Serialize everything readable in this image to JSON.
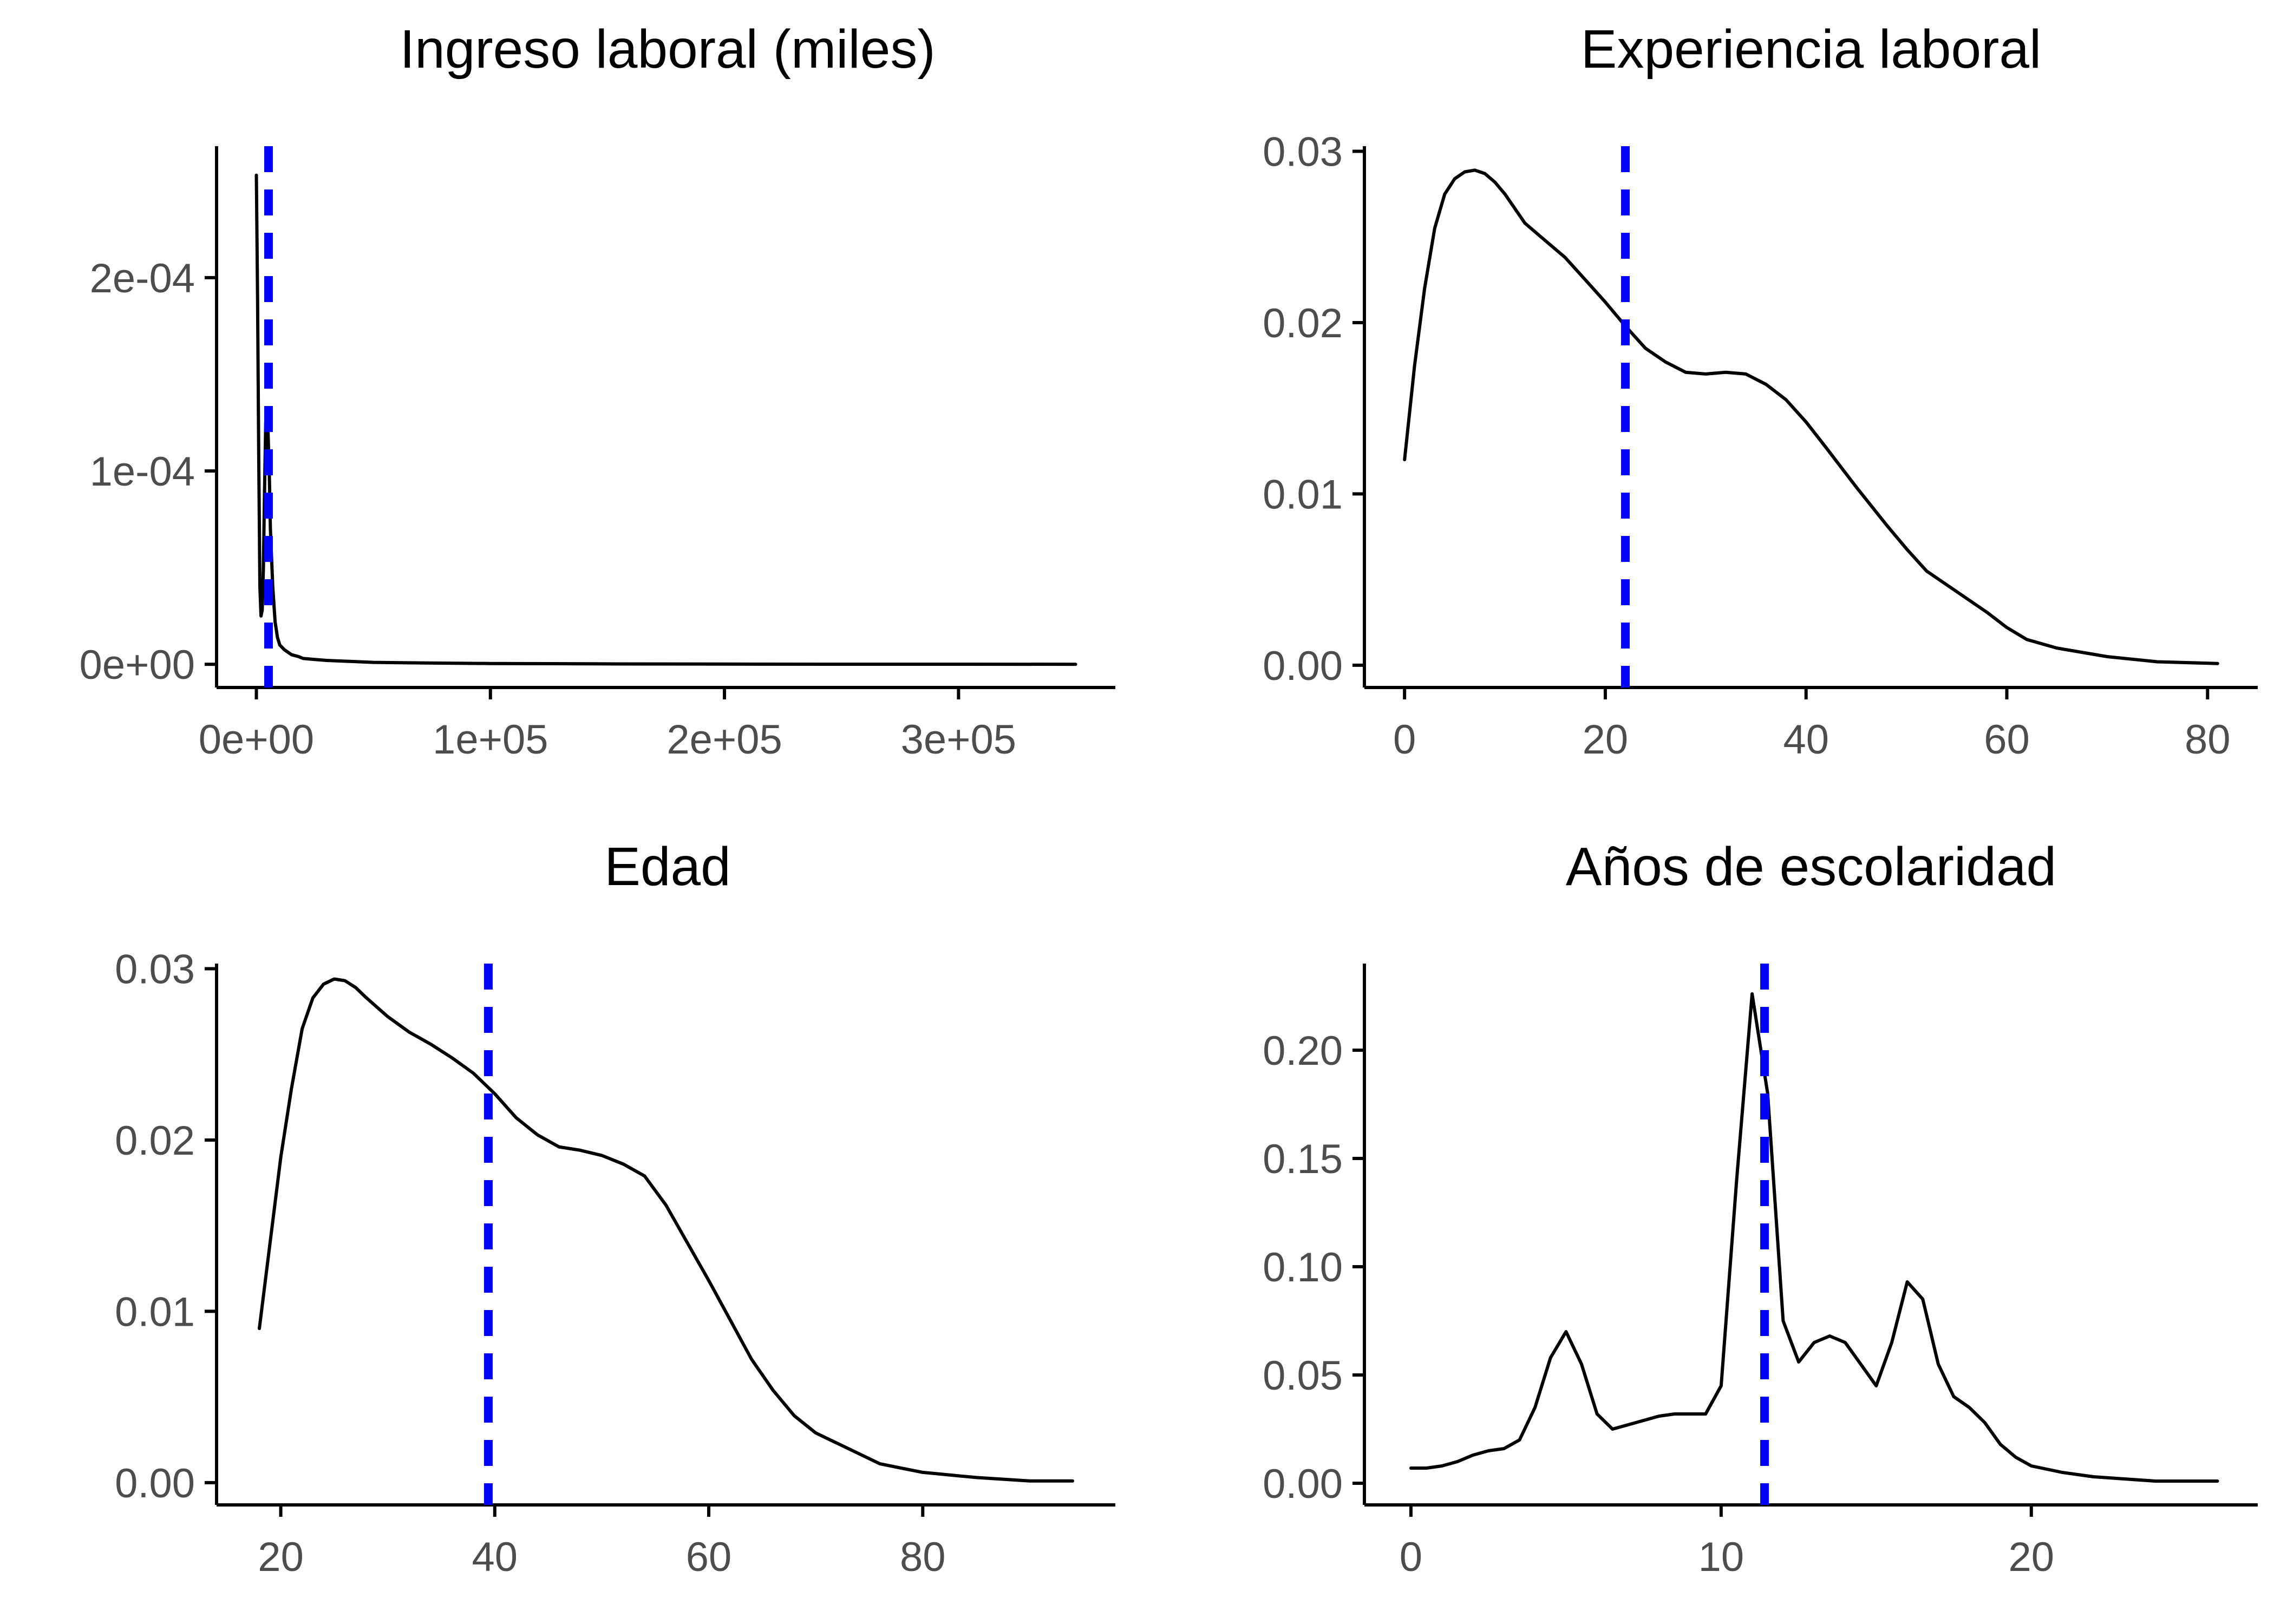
{
  "colors": {
    "background": "#ffffff",
    "density_line": "#000000",
    "mean_line": "#0000ff",
    "tick_text": "#4d4d4d"
  },
  "chart_data": [
    {
      "type": "line",
      "title": "Ingreso laboral (miles)",
      "xlabel": "",
      "ylabel": "",
      "xlim": [
        -17000,
        367000
      ],
      "ylim": [
        -1.2e-05,
        0.000268
      ],
      "x_ticks": [
        0,
        100000,
        200000,
        300000
      ],
      "x_tick_labels": [
        "0e+00",
        "1e+05",
        "2e+05",
        "3e+05"
      ],
      "y_ticks": [
        0,
        0.0001,
        0.0002
      ],
      "y_tick_labels": [
        "0e+00",
        "1e-04",
        "2e-04"
      ],
      "mean": 5200,
      "grid": false,
      "x": [
        0,
        500,
        1000,
        1500,
        2000,
        2500,
        3000,
        3500,
        4000,
        4500,
        5000,
        5500,
        6000,
        7000,
        8000,
        9000,
        10000,
        12000,
        15000,
        18000,
        20000,
        25000,
        30000,
        40000,
        50000,
        70000,
        100000,
        150000,
        200000,
        250000,
        300000,
        350000
      ],
      "y": [
        0.000253,
        0.00019,
        0.00011,
        4e-05,
        2.5e-05,
        2.8e-05,
        5e-05,
        9e-05,
        0.000125,
        0.000128,
        0.00012,
        0.0001,
        7e-05,
        4e-05,
        2.2e-05,
        1.4e-05,
        1e-05,
        7.5e-06,
        5e-06,
        4e-06,
        3e-06,
        2.5e-06,
        2e-06,
        1.5e-06,
        1e-06,
        7e-07,
        4e-07,
        2e-07,
        1e-07,
        5e-08,
        3e-08,
        2e-08
      ]
    },
    {
      "type": "line",
      "title": "Experiencia laboral",
      "xlabel": "",
      "ylabel": "",
      "xlim": [
        -4,
        85
      ],
      "ylim": [
        -0.0013,
        0.0303
      ],
      "x_ticks": [
        0,
        20,
        40,
        60,
        80
      ],
      "x_tick_labels": [
        "0",
        "20",
        "40",
        "60",
        "80"
      ],
      "y_ticks": [
        0,
        0.01,
        0.02,
        0.03
      ],
      "y_tick_labels": [
        "0.00",
        "0.01",
        "0.02",
        "0.03"
      ],
      "mean": 22,
      "grid": false,
      "x": [
        0,
        1,
        2,
        3,
        4,
        5,
        6,
        7,
        8,
        9,
        10,
        12,
        14,
        16,
        18,
        20,
        22,
        24,
        26,
        28,
        30,
        32,
        34,
        36,
        38,
        40,
        42,
        45,
        48,
        50,
        52,
        55,
        58,
        60,
        62,
        65,
        70,
        75,
        81
      ],
      "y": [
        0.012,
        0.0175,
        0.022,
        0.0255,
        0.0275,
        0.0284,
        0.0288,
        0.0289,
        0.0287,
        0.0282,
        0.0275,
        0.0258,
        0.0248,
        0.0238,
        0.0225,
        0.0212,
        0.0198,
        0.0185,
        0.0177,
        0.0171,
        0.017,
        0.0171,
        0.017,
        0.0164,
        0.0155,
        0.0142,
        0.0127,
        0.0104,
        0.0082,
        0.0068,
        0.0055,
        0.0043,
        0.0031,
        0.0022,
        0.0015,
        0.001,
        0.0005,
        0.0002,
        0.0001
      ]
    },
    {
      "type": "line",
      "title": "Edad",
      "xlabel": "",
      "ylabel": "",
      "xlim": [
        14,
        98
      ],
      "ylim": [
        -0.0013,
        0.0303
      ],
      "x_ticks": [
        20,
        40,
        60,
        80
      ],
      "x_tick_labels": [
        "20",
        "40",
        "60",
        "80"
      ],
      "y_ticks": [
        0,
        0.01,
        0.02,
        0.03
      ],
      "y_tick_labels": [
        "0.00",
        "0.01",
        "0.02",
        "0.03"
      ],
      "mean": 39.4,
      "grid": false,
      "x": [
        18,
        19,
        20,
        21,
        22,
        23,
        24,
        25,
        26,
        27,
        28,
        30,
        32,
        34,
        36,
        38,
        40,
        42,
        44,
        46,
        48,
        50,
        52,
        54,
        56,
        58,
        60,
        62,
        64,
        66,
        68,
        70,
        72,
        74,
        76,
        80,
        85,
        90,
        94
      ],
      "y": [
        0.009,
        0.014,
        0.019,
        0.023,
        0.0265,
        0.0283,
        0.0291,
        0.0294,
        0.0293,
        0.0289,
        0.0283,
        0.0272,
        0.0263,
        0.0256,
        0.0248,
        0.0239,
        0.0227,
        0.0213,
        0.0203,
        0.0196,
        0.0194,
        0.0191,
        0.0186,
        0.0179,
        0.0162,
        0.014,
        0.0118,
        0.0095,
        0.0072,
        0.0054,
        0.0039,
        0.0029,
        0.0023,
        0.0017,
        0.0011,
        0.0006,
        0.0003,
        0.0001,
        0.0001
      ]
    },
    {
      "type": "line",
      "title": "Años de escolaridad",
      "xlabel": "",
      "ylabel": "",
      "xlim": [
        -1.5,
        27.3
      ],
      "ylim": [
        -0.01,
        0.24
      ],
      "x_ticks": [
        0,
        10,
        20
      ],
      "x_tick_labels": [
        "0",
        "10",
        "20"
      ],
      "y_ticks": [
        0,
        0.05,
        0.1,
        0.15,
        0.2
      ],
      "y_tick_labels": [
        "0.00",
        "0.05",
        "0.10",
        "0.15",
        "0.20"
      ],
      "mean": 11.4,
      "grid": false,
      "x": [
        0,
        0.5,
        1,
        1.5,
        2,
        2.5,
        3,
        3.5,
        4,
        4.5,
        5,
        5.5,
        6,
        6.5,
        7,
        7.5,
        8,
        8.5,
        9,
        9.5,
        10,
        10.5,
        11,
        11.5,
        12,
        12.5,
        13,
        13.5,
        14,
        14.5,
        15,
        15.5,
        16,
        16.5,
        17,
        17.5,
        18,
        18.5,
        19,
        19.5,
        20,
        21,
        22,
        23,
        24,
        26
      ],
      "y": [
        0.007,
        0.007,
        0.008,
        0.01,
        0.013,
        0.015,
        0.016,
        0.02,
        0.035,
        0.058,
        0.07,
        0.055,
        0.032,
        0.025,
        0.027,
        0.029,
        0.031,
        0.032,
        0.032,
        0.032,
        0.045,
        0.14,
        0.226,
        0.18,
        0.075,
        0.056,
        0.065,
        0.068,
        0.065,
        0.055,
        0.045,
        0.065,
        0.093,
        0.085,
        0.055,
        0.04,
        0.035,
        0.028,
        0.018,
        0.012,
        0.008,
        0.005,
        0.003,
        0.002,
        0.001,
        0.001
      ]
    }
  ]
}
